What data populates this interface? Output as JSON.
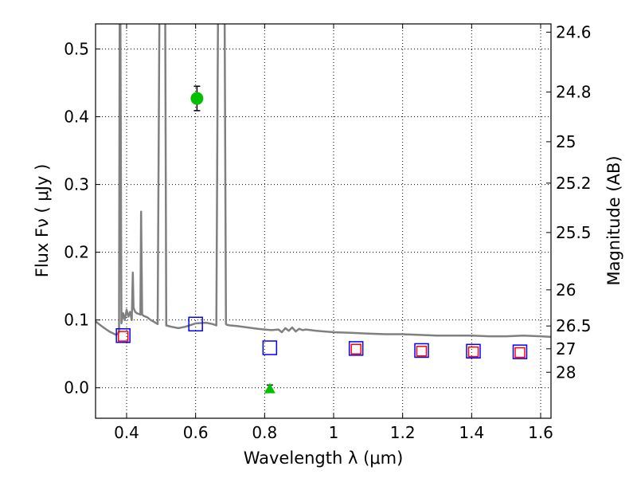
{
  "chart_data": {
    "type": "scatter",
    "xlabel": "Wavelength  λ (μm)",
    "ylabel": "Flux  Fν  ( μJy )",
    "ylabel_right": "Magnitude (AB)",
    "xlim": [
      0.31,
      1.63
    ],
    "ylim": [
      -0.045,
      0.537
    ],
    "x_ticks": [
      0.4,
      0.6,
      0.8,
      1.0,
      1.2,
      1.4,
      1.6
    ],
    "x_tick_labels": [
      "0.4",
      "0.6",
      "0.8",
      "1",
      "1.2",
      "1.4",
      "1.6"
    ],
    "y_ticks": [
      0.0,
      0.1,
      0.2,
      0.3,
      0.4,
      0.5
    ],
    "y_tick_labels": [
      "0.0",
      "0.1",
      "0.2",
      "0.3",
      "0.4",
      "0.5"
    ],
    "right_ticks": [
      {
        "label": "24.6",
        "flux": 0.5248
      },
      {
        "label": "24.8",
        "flux": 0.4365
      },
      {
        "label": "25",
        "flux": 0.3631
      },
      {
        "label": "25.2",
        "flux": 0.302
      },
      {
        "label": "25.5",
        "flux": 0.2291
      },
      {
        "label": "26",
        "flux": 0.1445
      },
      {
        "label": "26.5",
        "flux": 0.0912
      },
      {
        "label": "27",
        "flux": 0.0575
      },
      {
        "label": "28",
        "flux": 0.0229
      }
    ],
    "grid": true,
    "series": [
      {
        "name": "Model spectrum",
        "kind": "line",
        "color": "#808080",
        "x": [
          0.31,
          0.33,
          0.35,
          0.37,
          0.378,
          0.38,
          0.382,
          0.385,
          0.39,
          0.395,
          0.4,
          0.405,
          0.41,
          0.415,
          0.418,
          0.42,
          0.425,
          0.43,
          0.44,
          0.442,
          0.445,
          0.45,
          0.46,
          0.47,
          0.48,
          0.49,
          0.495,
          0.498,
          0.5,
          0.502,
          0.505,
          0.507,
          0.51,
          0.512,
          0.515,
          0.53,
          0.55,
          0.57,
          0.6,
          0.63,
          0.65,
          0.66,
          0.665,
          0.668,
          0.672,
          0.676,
          0.68,
          0.684,
          0.688,
          0.69,
          0.7,
          0.72,
          0.75,
          0.78,
          0.8,
          0.82,
          0.84,
          0.85,
          0.86,
          0.87,
          0.88,
          0.89,
          0.9,
          0.91,
          0.92,
          0.95,
          1.0,
          1.05,
          1.1,
          1.15,
          1.2,
          1.25,
          1.3,
          1.35,
          1.4,
          1.45,
          1.5,
          1.55,
          1.6,
          1.63
        ],
        "y": [
          0.098,
          0.09,
          0.083,
          0.078,
          0.082,
          0.55,
          0.55,
          0.095,
          0.11,
          0.1,
          0.115,
          0.105,
          0.112,
          0.1,
          0.17,
          0.118,
          0.112,
          0.11,
          0.108,
          0.26,
          0.108,
          0.106,
          0.104,
          0.1,
          0.097,
          0.094,
          0.55,
          0.55,
          0.55,
          0.55,
          0.55,
          0.55,
          0.55,
          0.55,
          0.092,
          0.09,
          0.088,
          0.09,
          0.095,
          0.096,
          0.094,
          0.092,
          0.55,
          0.55,
          0.55,
          0.55,
          0.55,
          0.55,
          0.094,
          0.093,
          0.092,
          0.091,
          0.089,
          0.087,
          0.086,
          0.085,
          0.086,
          0.082,
          0.088,
          0.084,
          0.089,
          0.083,
          0.087,
          0.085,
          0.086,
          0.084,
          0.082,
          0.081,
          0.08,
          0.079,
          0.079,
          0.078,
          0.077,
          0.077,
          0.077,
          0.076,
          0.076,
          0.077,
          0.076,
          0.075
        ]
      },
      {
        "name": "Blue squares",
        "kind": "marker",
        "marker": "square-open",
        "color": "#0000ff",
        "x": [
          0.39,
          0.6,
          0.815,
          1.065,
          1.255,
          1.405,
          1.54
        ],
        "y": [
          0.077,
          0.094,
          0.059,
          0.058,
          0.055,
          0.054,
          0.053
        ]
      },
      {
        "name": "Red squares",
        "kind": "marker",
        "marker": "square-open",
        "color": "#ff0000",
        "x": [
          0.39,
          1.065,
          1.255,
          1.405,
          1.54
        ],
        "y": [
          0.076,
          0.057,
          0.054,
          0.053,
          0.052
        ]
      },
      {
        "name": "Green detection",
        "kind": "marker",
        "marker": "circle",
        "color": "#00c000",
        "x": [
          0.604
        ],
        "y": [
          0.427
        ],
        "yerr": [
          0.018
        ]
      },
      {
        "name": "Green upper limit",
        "kind": "marker",
        "marker": "triangle",
        "color": "#00c000",
        "x": [
          0.815
        ],
        "y": [
          -0.001
        ],
        "yerr": [
          0.005
        ]
      }
    ]
  }
}
